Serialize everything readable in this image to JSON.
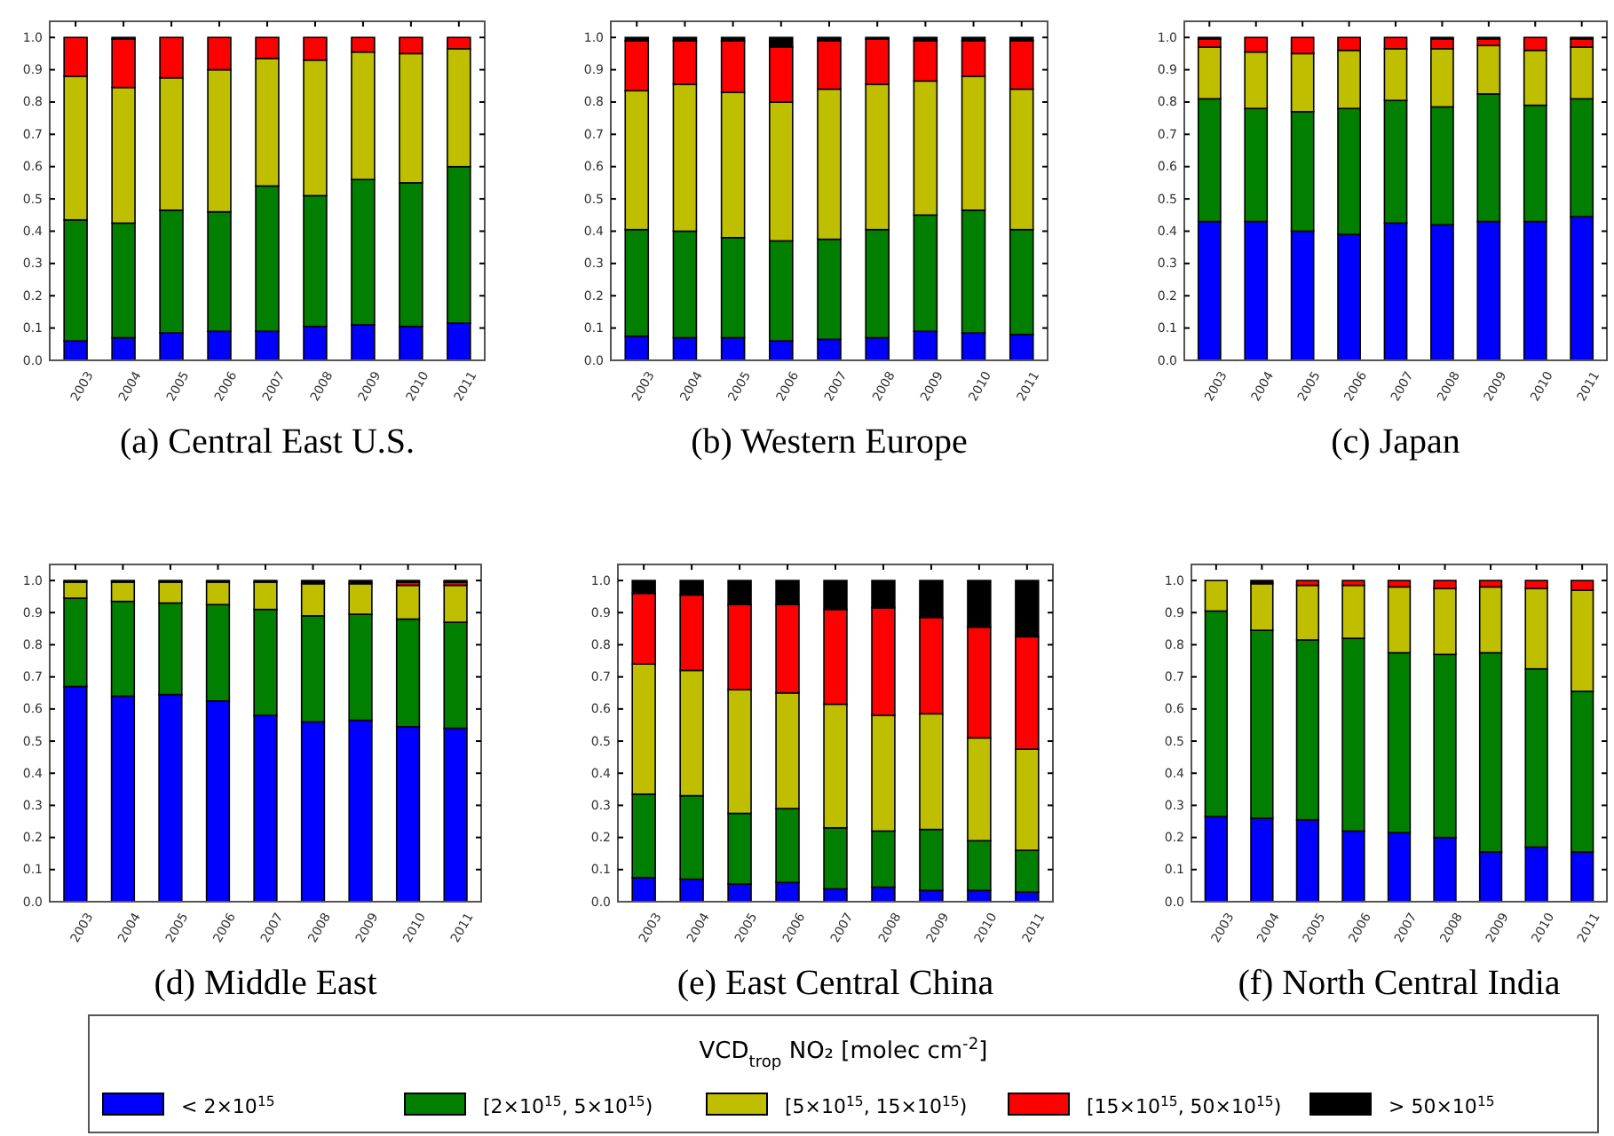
{
  "chart_data": [
    {
      "type": "bar",
      "stacked": true,
      "title": "(a) Central East U.S.",
      "categories": [
        "2003",
        "2004",
        "2005",
        "2006",
        "2007",
        "2008",
        "2009",
        "2010",
        "2011"
      ],
      "ylim": [
        0,
        1.05
      ],
      "yticks": [
        {
          "value": 0,
          "label": "0.0"
        },
        {
          "value": 0.1,
          "label": "0.1"
        },
        {
          "value": 0.2,
          "label": "0.2"
        },
        {
          "value": 0.3,
          "label": "0.3"
        },
        {
          "value": 0.4,
          "label": "0.4"
        },
        {
          "value": 0.5,
          "label": "0.5"
        },
        {
          "value": 0.6,
          "label": "0.6"
        },
        {
          "value": 0.7,
          "label": "0.7"
        },
        {
          "value": 0.8,
          "label": "0.8"
        },
        {
          "value": 0.9,
          "label": "0.9"
        },
        {
          "value": 1,
          "label": "1.0"
        }
      ],
      "legend": "bottom",
      "legend_title": "VCD$_{trop}$ NO₂ [molec cm$^{-2}$]",
      "series": [
        {
          "name": "< 2×10$^{15}$",
          "color": "#0000ff",
          "values": [
            0.06,
            0.07,
            0.085,
            0.09,
            0.09,
            0.105,
            0.11,
            0.105,
            0.115
          ]
        },
        {
          "name": "[2×10$^{15}$, 5×10$^{15}$)",
          "color": "#007f00",
          "values": [
            0.375,
            0.355,
            0.38,
            0.37,
            0.45,
            0.405,
            0.45,
            0.445,
            0.485
          ]
        },
        {
          "name": "[5×10$^{15}$, 15×10$^{15}$)",
          "color": "#bfbf00",
          "values": [
            0.445,
            0.42,
            0.41,
            0.44,
            0.395,
            0.42,
            0.395,
            0.4,
            0.365
          ]
        },
        {
          "name": "[15×10$^{15}$, 50×10$^{15}$)",
          "color": "#ff0000",
          "values": [
            0.12,
            0.15,
            0.125,
            0.1,
            0.065,
            0.07,
            0.045,
            0.05,
            0.035
          ]
        },
        {
          "name": "> 50×10$^{15}$",
          "color": "#000000",
          "values": [
            0,
            0.005,
            0,
            0,
            0,
            0,
            0,
            0,
            0
          ]
        }
      ]
    },
    {
      "type": "bar",
      "stacked": true,
      "title": "(b) Western Europe",
      "categories": [
        "2003",
        "2004",
        "2005",
        "2006",
        "2007",
        "2008",
        "2009",
        "2010",
        "2011"
      ],
      "ylim": [
        0,
        1.05
      ],
      "yticks": [
        {
          "value": 0,
          "label": "0.0"
        },
        {
          "value": 0.1,
          "label": "0.1"
        },
        {
          "value": 0.2,
          "label": "0.2"
        },
        {
          "value": 0.3,
          "label": "0.3"
        },
        {
          "value": 0.4,
          "label": "0.4"
        },
        {
          "value": 0.5,
          "label": "0.5"
        },
        {
          "value": 0.6,
          "label": "0.6"
        },
        {
          "value": 0.7,
          "label": "0.7"
        },
        {
          "value": 0.8,
          "label": "0.8"
        },
        {
          "value": 0.9,
          "label": "0.9"
        },
        {
          "value": 1,
          "label": "1.0"
        }
      ],
      "series": [
        {
          "color": "#0000ff",
          "values": [
            0.075,
            0.07,
            0.07,
            0.06,
            0.065,
            0.07,
            0.09,
            0.085,
            0.08
          ]
        },
        {
          "color": "#007f00",
          "values": [
            0.33,
            0.33,
            0.31,
            0.31,
            0.31,
            0.335,
            0.36,
            0.38,
            0.325
          ]
        },
        {
          "color": "#bfbf00",
          "values": [
            0.43,
            0.455,
            0.45,
            0.43,
            0.465,
            0.45,
            0.415,
            0.415,
            0.435
          ]
        },
        {
          "color": "#ff0000",
          "values": [
            0.155,
            0.135,
            0.16,
            0.17,
            0.15,
            0.14,
            0.125,
            0.11,
            0.15
          ]
        },
        {
          "color": "#000000",
          "values": [
            0.01,
            0.01,
            0.01,
            0.03,
            0.01,
            0.005,
            0.01,
            0.01,
            0.01
          ]
        }
      ]
    },
    {
      "type": "bar",
      "stacked": true,
      "title": "(c) Japan",
      "categories": [
        "2003",
        "2004",
        "2005",
        "2006",
        "2007",
        "2008",
        "2009",
        "2010",
        "2011"
      ],
      "ylim": [
        0,
        1.05
      ],
      "yticks": [
        {
          "value": 0,
          "label": "0.0"
        },
        {
          "value": 0.1,
          "label": "0.1"
        },
        {
          "value": 0.2,
          "label": "0.2"
        },
        {
          "value": 0.3,
          "label": "0.3"
        },
        {
          "value": 0.4,
          "label": "0.4"
        },
        {
          "value": 0.5,
          "label": "0.5"
        },
        {
          "value": 0.6,
          "label": "0.6"
        },
        {
          "value": 0.7,
          "label": "0.7"
        },
        {
          "value": 0.8,
          "label": "0.8"
        },
        {
          "value": 0.9,
          "label": "0.9"
        },
        {
          "value": 1,
          "label": "1.0"
        }
      ],
      "series": [
        {
          "color": "#0000ff",
          "values": [
            0.43,
            0.43,
            0.4,
            0.39,
            0.425,
            0.42,
            0.43,
            0.43,
            0.445
          ]
        },
        {
          "color": "#007f00",
          "values": [
            0.38,
            0.35,
            0.37,
            0.39,
            0.38,
            0.365,
            0.395,
            0.36,
            0.365
          ]
        },
        {
          "color": "#bfbf00",
          "values": [
            0.16,
            0.175,
            0.18,
            0.18,
            0.16,
            0.18,
            0.15,
            0.17,
            0.16
          ]
        },
        {
          "color": "#ff0000",
          "values": [
            0.025,
            0.045,
            0.05,
            0.04,
            0.035,
            0.03,
            0.02,
            0.04,
            0.025
          ]
        },
        {
          "color": "#000000",
          "values": [
            0.005,
            0,
            0,
            0,
            0,
            0.005,
            0.005,
            0,
            0.005
          ]
        }
      ]
    },
    {
      "type": "bar",
      "stacked": true,
      "title": "(d) Middle East",
      "categories": [
        "2003",
        "2004",
        "2005",
        "2006",
        "2007",
        "2008",
        "2009",
        "2010",
        "2011"
      ],
      "ylim": [
        0,
        1.05
      ],
      "yticks": [
        {
          "value": 0,
          "label": "0.0"
        },
        {
          "value": 0.1,
          "label": "0.1"
        },
        {
          "value": 0.2,
          "label": "0.2"
        },
        {
          "value": 0.3,
          "label": "0.3"
        },
        {
          "value": 0.4,
          "label": "0.4"
        },
        {
          "value": 0.5,
          "label": "0.5"
        },
        {
          "value": 0.6,
          "label": "0.6"
        },
        {
          "value": 0.7,
          "label": "0.7"
        },
        {
          "value": 0.8,
          "label": "0.8"
        },
        {
          "value": 0.9,
          "label": "0.9"
        },
        {
          "value": 1,
          "label": "1.0"
        }
      ],
      "series": [
        {
          "color": "#0000ff",
          "values": [
            0.67,
            0.64,
            0.645,
            0.625,
            0.58,
            0.56,
            0.565,
            0.545,
            0.54
          ]
        },
        {
          "color": "#007f00",
          "values": [
            0.275,
            0.295,
            0.285,
            0.3,
            0.33,
            0.33,
            0.33,
            0.335,
            0.33
          ]
        },
        {
          "color": "#bfbf00",
          "values": [
            0.05,
            0.06,
            0.065,
            0.07,
            0.085,
            0.1,
            0.095,
            0.105,
            0.115
          ]
        },
        {
          "color": "#ff0000",
          "values": [
            0,
            0,
            0,
            0,
            0,
            0,
            0,
            0.01,
            0.01
          ]
        },
        {
          "color": "#000000",
          "values": [
            0.005,
            0.005,
            0.005,
            0.005,
            0.005,
            0.01,
            0.01,
            0.005,
            0.005
          ]
        }
      ]
    },
    {
      "type": "bar",
      "stacked": true,
      "title": "(e) East Central China",
      "categories": [
        "2003",
        "2004",
        "2005",
        "2006",
        "2007",
        "2008",
        "2009",
        "2010",
        "2011"
      ],
      "ylim": [
        0,
        1.05
      ],
      "yticks": [
        {
          "value": 0,
          "label": "0.0"
        },
        {
          "value": 0.1,
          "label": "0.1"
        },
        {
          "value": 0.2,
          "label": "0.2"
        },
        {
          "value": 0.3,
          "label": "0.3"
        },
        {
          "value": 0.4,
          "label": "0.4"
        },
        {
          "value": 0.5,
          "label": "0.5"
        },
        {
          "value": 0.6,
          "label": "0.6"
        },
        {
          "value": 0.7,
          "label": "0.7"
        },
        {
          "value": 0.8,
          "label": "0.8"
        },
        {
          "value": 0.9,
          "label": "0.9"
        },
        {
          "value": 1,
          "label": "1.0"
        }
      ],
      "series": [
        {
          "color": "#0000ff",
          "values": [
            0.075,
            0.07,
            0.055,
            0.06,
            0.04,
            0.045,
            0.035,
            0.035,
            0.03
          ]
        },
        {
          "color": "#007f00",
          "values": [
            0.26,
            0.26,
            0.22,
            0.23,
            0.19,
            0.175,
            0.19,
            0.155,
            0.13
          ]
        },
        {
          "color": "#bfbf00",
          "values": [
            0.405,
            0.39,
            0.385,
            0.36,
            0.385,
            0.36,
            0.36,
            0.32,
            0.315
          ]
        },
        {
          "color": "#ff0000",
          "values": [
            0.22,
            0.235,
            0.265,
            0.275,
            0.295,
            0.335,
            0.3,
            0.345,
            0.35
          ]
        },
        {
          "color": "#000000",
          "values": [
            0.04,
            0.045,
            0.075,
            0.075,
            0.09,
            0.085,
            0.115,
            0.145,
            0.175
          ]
        }
      ]
    },
    {
      "type": "bar",
      "stacked": true,
      "title": "(f) North Central India",
      "categories": [
        "2003",
        "2004",
        "2005",
        "2006",
        "2007",
        "2008",
        "2009",
        "2010",
        "2011"
      ],
      "ylim": [
        0,
        1.05
      ],
      "yticks": [
        {
          "value": 0,
          "label": "0.0"
        },
        {
          "value": 0.1,
          "label": "0.1"
        },
        {
          "value": 0.2,
          "label": "0.2"
        },
        {
          "value": 0.3,
          "label": "0.3"
        },
        {
          "value": 0.4,
          "label": "0.4"
        },
        {
          "value": 0.5,
          "label": "0.5"
        },
        {
          "value": 0.6,
          "label": "0.6"
        },
        {
          "value": 0.7,
          "label": "0.7"
        },
        {
          "value": 0.8,
          "label": "0.8"
        },
        {
          "value": 0.9,
          "label": "0.9"
        },
        {
          "value": 1,
          "label": "1.0"
        }
      ],
      "series": [
        {
          "color": "#0000ff",
          "values": [
            0.265,
            0.26,
            0.255,
            0.22,
            0.215,
            0.2,
            0.155,
            0.17,
            0.155
          ]
        },
        {
          "color": "#007f00",
          "values": [
            0.64,
            0.585,
            0.56,
            0.6,
            0.56,
            0.57,
            0.62,
            0.555,
            0.5
          ]
        },
        {
          "color": "#bfbf00",
          "values": [
            0.095,
            0.145,
            0.17,
            0.165,
            0.205,
            0.205,
            0.205,
            0.25,
            0.315
          ]
        },
        {
          "color": "#ff0000",
          "values": [
            0,
            0.005,
            0.015,
            0.015,
            0.02,
            0.025,
            0.02,
            0.025,
            0.03
          ]
        },
        {
          "color": "#000000",
          "values": [
            0,
            0.005,
            0,
            0,
            0,
            0,
            0,
            0,
            0
          ]
        }
      ]
    }
  ]
}
